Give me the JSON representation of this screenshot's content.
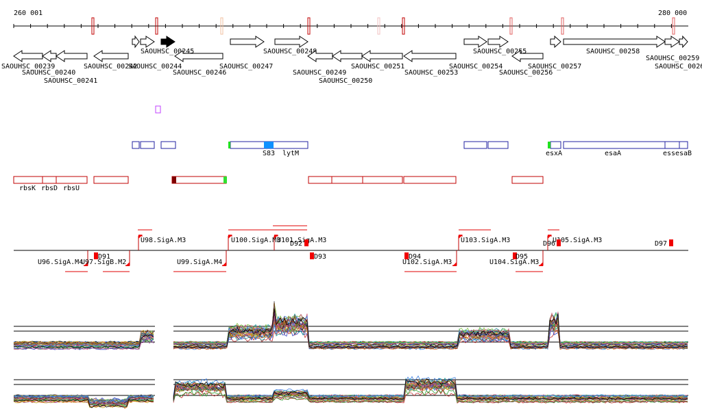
{
  "ruler": {
    "start": "260 001",
    "end": "280 000"
  },
  "genes": [
    "SAOUHSC_00239",
    "SAOUHSC_00240",
    "SAOUHSC_00241",
    "SAOUHSC_00242",
    "SAOUHSC_00244",
    "SAOUHSC_00245",
    "SAOUHSC_00246",
    "SAOUHSC_00247",
    "SAOUHSC_00248",
    "SAOUHSC_00249",
    "SAOUHSC_00250",
    "SAOUHSC_00251",
    "SAOUHSC_00253",
    "SAOUHSC_00254",
    "SAOUHSC_00255",
    "SAOUHSC_00256",
    "SAOUHSC_00257",
    "SAOUHSC_00258",
    "SAOUHSC_00259",
    "SAOUHSC_0026"
  ],
  "features": [
    "S83",
    "lytM",
    "esxA",
    "esaA",
    "ess",
    "esaB"
  ],
  "operons": [
    "rbsK",
    "rbsD",
    "rbsU"
  ],
  "promoters": [
    "U96.SigA.M4",
    "U97.SigB.M2",
    "U98.SigA.M3",
    "U99.SigA.M4",
    "U100.SigA.M3",
    "U101.SigA.M3",
    "U102.SigA.M3",
    "U103.SigA.M3",
    "U104.SigA.M3",
    "U105.SigA.M3"
  ],
  "terminators": [
    "D91",
    "D92",
    "D93",
    "D94",
    "D95",
    "D96",
    "D97"
  ]
}
